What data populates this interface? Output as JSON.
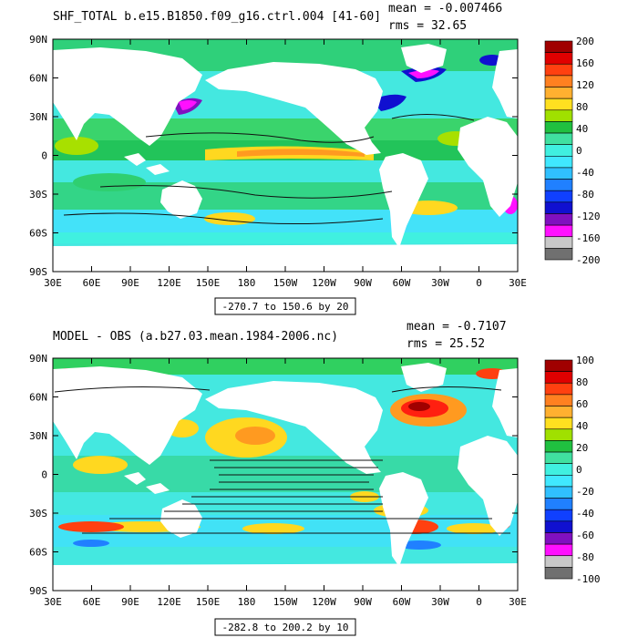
{
  "charts": [
    {
      "title": "SHF_TOTAL b.e15.B1850.f09_g16.ctrl.004 [41-60]",
      "mean_text": "mean = -0.007466",
      "rms_text": "rms = 32.65",
      "range_text": "-270.7 to 150.6 by 20"
    },
    {
      "title": "MODEL - OBS (a.b27.03.mean.1984-2006.nc)",
      "mean_text": "mean = -0.7107",
      "rms_text": "rms = 25.52",
      "range_text": "-282.8 to 200.2 by 10"
    }
  ],
  "chart_data": [
    {
      "type": "heatmap",
      "title": "SHF_TOTAL b.e15.B1850.f09_g16.ctrl.004 [41-60]",
      "x_ticks": [
        "30E",
        "60E",
        "90E",
        "120E",
        "150E",
        "180",
        "150W",
        "120W",
        "90W",
        "60W",
        "30W",
        "0",
        "30E"
      ],
      "y_ticks": [
        "90N",
        "60N",
        "30N",
        "0",
        "30S",
        "60S",
        "90S"
      ],
      "colorbar_labels": [
        "200",
        "160",
        "120",
        "80",
        "40",
        "0",
        "-40",
        "-80",
        "-120",
        "-160",
        "-200"
      ],
      "colorbar_colors": [
        "#a00000",
        "#e00000",
        "#ff4010",
        "#ff8020",
        "#ffb030",
        "#ffe020",
        "#a0e000",
        "#20c040",
        "#40e0a0",
        "#40f0e0",
        "#40e8ff",
        "#30c0ff",
        "#2080ff",
        "#1040ff",
        "#1010d0",
        "#8010c0",
        "#ff10ff",
        "#c8c8c8",
        "#707070"
      ],
      "mean": -0.007466,
      "rms": 32.65,
      "contour_min": -270.7,
      "contour_max": 150.6,
      "contour_interval": 20
    },
    {
      "type": "heatmap",
      "title": "MODEL - OBS (a.b27.03.mean.1984-2006.nc)",
      "x_ticks": [
        "30E",
        "60E",
        "90E",
        "120E",
        "150E",
        "180",
        "150W",
        "120W",
        "90W",
        "60W",
        "30W",
        "0",
        "30E"
      ],
      "y_ticks": [
        "90N",
        "60N",
        "30N",
        "0",
        "30S",
        "60S",
        "90S"
      ],
      "colorbar_labels": [
        "100",
        "80",
        "60",
        "40",
        "20",
        "0",
        "-20",
        "-40",
        "-60",
        "-80",
        "-100"
      ],
      "colorbar_colors": [
        "#a00000",
        "#e00000",
        "#ff4010",
        "#ff8020",
        "#ffb030",
        "#ffe020",
        "#a0e000",
        "#20c040",
        "#40e0a0",
        "#40f0e0",
        "#40e8ff",
        "#30c0ff",
        "#2080ff",
        "#1040ff",
        "#1010d0",
        "#8010c0",
        "#ff10ff",
        "#c8c8c8",
        "#707070"
      ],
      "mean": -0.7107,
      "rms": 25.52,
      "contour_min": -282.8,
      "contour_max": 200.2,
      "contour_interval": 10
    }
  ]
}
